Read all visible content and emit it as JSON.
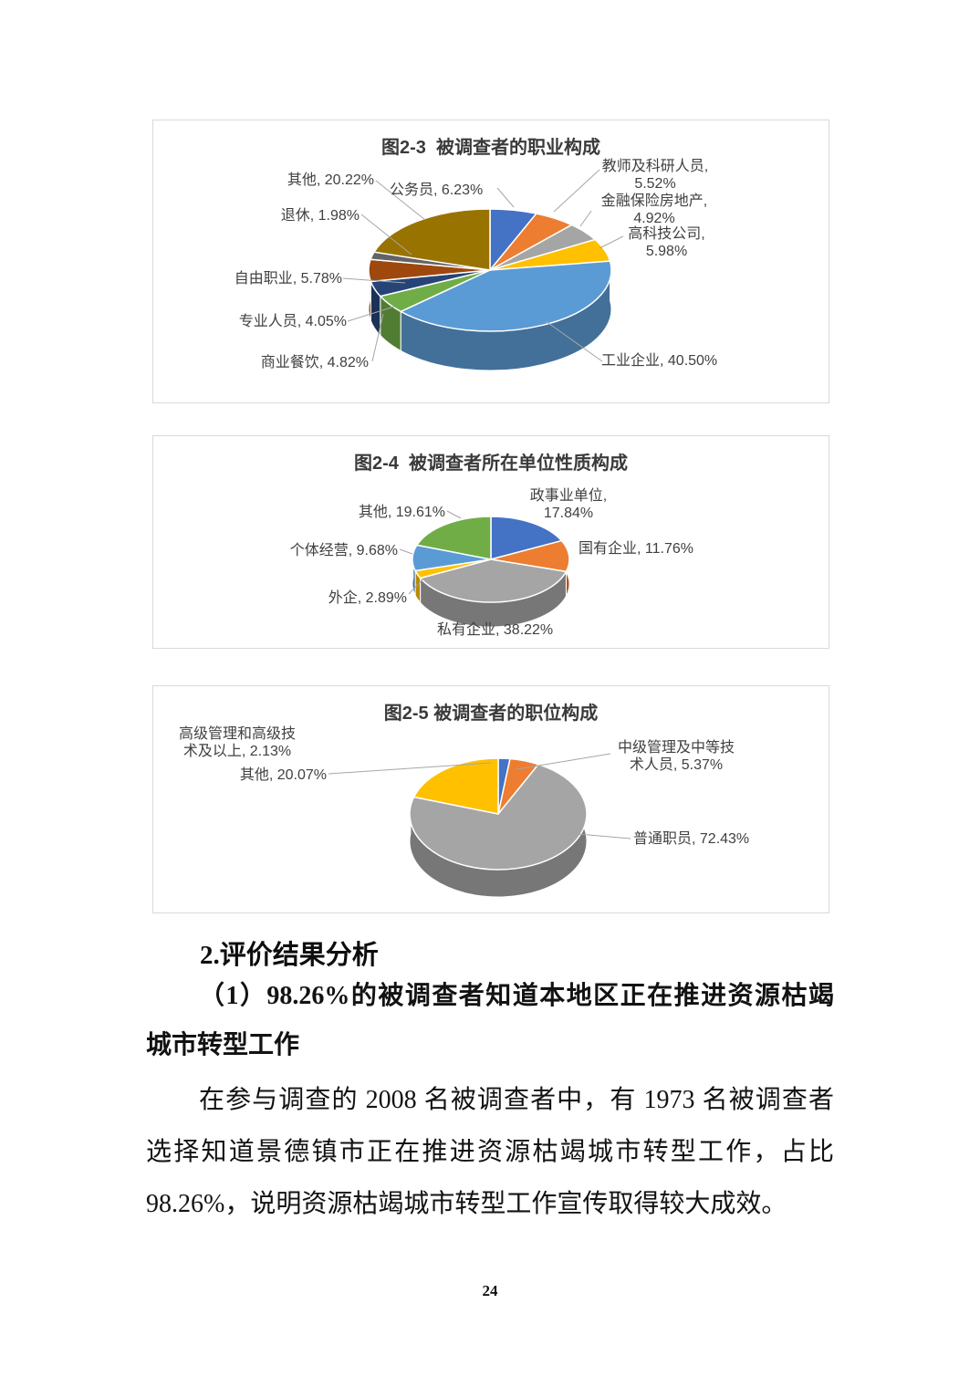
{
  "page": {
    "number": "24",
    "background": "#FFFFFF"
  },
  "colors": {
    "accent_blue": "#4472C4",
    "accent_orange": "#ED7D31",
    "accent_gray": "#A5A5A5",
    "accent_yellow": "#FFC000",
    "accent_lightblue": "#5B9BD5",
    "accent_green": "#70AD47",
    "dark_navy": "#264478",
    "dark_rust": "#9E480E",
    "dark_gray": "#636363",
    "dark_olive": "#997300",
    "label_text": "#404040",
    "leader_line": "#A6A6A6",
    "box_border": "#D9D9D9"
  },
  "chart_data": [
    {
      "type": "pie",
      "style": "3d-pie",
      "title": "图2-3  被调查者的职业构成",
      "legend": "none",
      "labels_position": "outside-with-leader-lines",
      "total": 100,
      "slices": [
        {
          "name": "公务员",
          "value": 6.23,
          "label": "公务员, 6.23%",
          "color": "#4472C4"
        },
        {
          "name": "教师及科研人员",
          "value": 5.52,
          "label": "教师及科研人员, 5.52%",
          "color": "#ED7D31"
        },
        {
          "name": "金融保险房地产",
          "value": 4.92,
          "label": "金融保险房地产, 4.92%",
          "color": "#A5A5A5"
        },
        {
          "name": "高科技公司",
          "value": 5.98,
          "label": "高科技公司, 5.98%",
          "color": "#FFC000"
        },
        {
          "name": "工业企业",
          "value": 40.5,
          "label": "工业企业, 40.50%",
          "color": "#5B9BD5"
        },
        {
          "name": "商业餐饮",
          "value": 4.82,
          "label": "商业餐饮, 4.82%",
          "color": "#70AD47"
        },
        {
          "name": "专业人员",
          "value": 4.05,
          "label": "专业人员, 4.05%",
          "color": "#264478"
        },
        {
          "name": "自由职业",
          "value": 5.78,
          "label": "自由职业, 5.78%",
          "color": "#9E480E"
        },
        {
          "name": "退休",
          "value": 1.98,
          "label": "退休, 1.98%",
          "color": "#636363"
        },
        {
          "name": "其他",
          "value": 20.22,
          "label": "其他, 20.22%",
          "color": "#997300"
        }
      ]
    },
    {
      "type": "pie",
      "style": "3d-pie",
      "title": "图2-4  被调查者所在单位性质构成",
      "legend": "none",
      "labels_position": "outside-with-leader-lines",
      "total": 100,
      "slices": [
        {
          "name": "政事业单位",
          "value": 17.84,
          "label": "政事业单位, 17.84%",
          "color": "#4472C4"
        },
        {
          "name": "国有企业",
          "value": 11.76,
          "label": "国有企业, 11.76%",
          "color": "#ED7D31"
        },
        {
          "name": "私有企业",
          "value": 38.22,
          "label": "私有企业, 38.22%",
          "color": "#A5A5A5"
        },
        {
          "name": "外企",
          "value": 2.89,
          "label": "外企, 2.89%",
          "color": "#FFC000"
        },
        {
          "name": "个体经营",
          "value": 9.68,
          "label": "个体经营, 9.68%",
          "color": "#5B9BD5"
        },
        {
          "name": "其他",
          "value": 19.61,
          "label": "其他, 19.61%",
          "color": "#70AD47"
        }
      ]
    },
    {
      "type": "pie",
      "style": "3d-pie",
      "title": "图2-5 被调查者的职位构成",
      "legend": "none",
      "labels_position": "outside-with-leader-lines",
      "total": 100,
      "slices": [
        {
          "name": "高级管理和高级技术及以上",
          "value": 2.13,
          "label": "高级管理和高级技术及以上, 2.13%",
          "color": "#4472C4"
        },
        {
          "name": "中级管理及中等技术人员",
          "value": 5.37,
          "label": "中级管理及中等技术人员, 5.37%",
          "color": "#ED7D31"
        },
        {
          "name": "普通职员",
          "value": 72.43,
          "label": "普通职员, 72.43%",
          "color": "#A5A5A5"
        },
        {
          "name": "其他",
          "value": 20.07,
          "label": "其他, 20.07%",
          "color": "#FFC000"
        }
      ]
    }
  ],
  "body": {
    "heading": "2.评价结果分析",
    "subheading_lines": [
      "（1）98.26%的被调查者知道本地区正在推进资源枯竭",
      "城市转型工作"
    ],
    "paragraph_lines": [
      "在参与调查的 2008 名被调查者中，有 1973 名被调查者",
      "选择知道景德镇市正在推进资源枯竭城市转型工作，占比",
      "98.26%，说明资源枯竭城市转型工作宣传取得较大成效。"
    ]
  }
}
